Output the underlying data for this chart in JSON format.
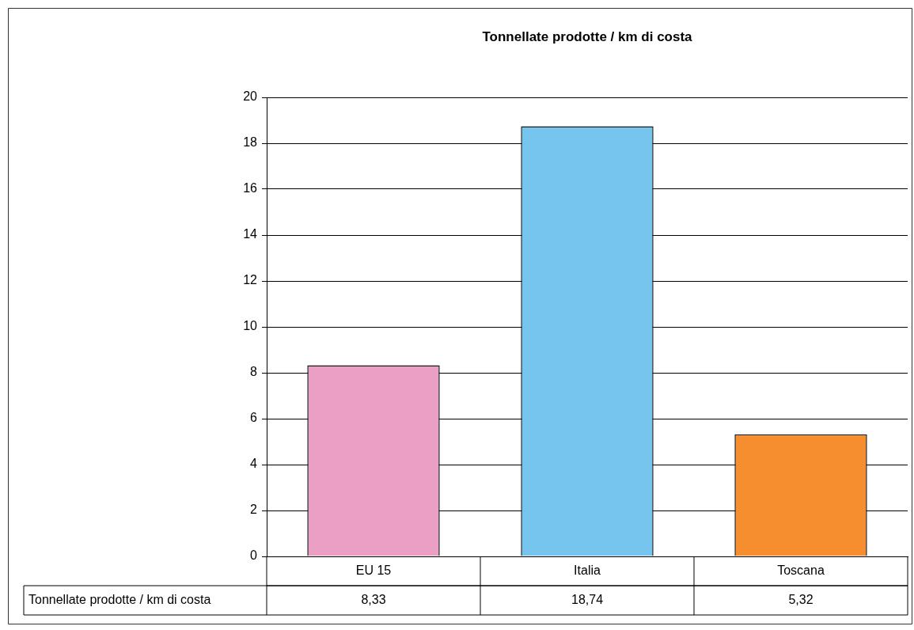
{
  "chart_data": {
    "type": "bar",
    "title": "Tonnellate prodotte / km di costa",
    "categories": [
      "EU 15",
      "Italia",
      "Toscana"
    ],
    "series": [
      {
        "name": "Tonnellate prodotte / km di costa",
        "colors": [
          "#eb9fc4",
          "#75c5ee",
          "#f68d2e"
        ],
        "values": [
          8.33,
          18.74,
          5.32
        ],
        "value_labels": [
          "8,33",
          "18,74",
          "5,32"
        ]
      }
    ],
    "ylim": [
      0,
      20
    ],
    "yticks": [
      0,
      2,
      4,
      6,
      8,
      10,
      12,
      14,
      16,
      18,
      20
    ],
    "grid": "y",
    "legend": false
  }
}
